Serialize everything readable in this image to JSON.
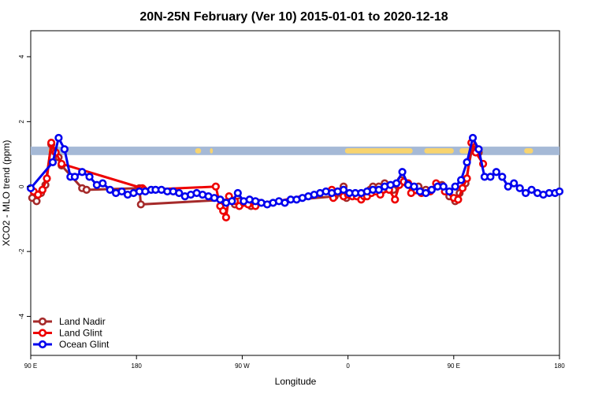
{
  "chart_data": {
    "type": "line",
    "title": "20N-25N February (Ver 10)   2015-01-01 to 2020-12-18",
    "xlabel": "Longitude",
    "ylabel": "XCO2 - MLO trend (ppm)",
    "xlim": [
      -90,
      270
    ],
    "ylim": [
      -5.2,
      4.8
    ],
    "x_ticks": [
      {
        "value": -90,
        "label": "90 E"
      },
      {
        "value": -18,
        "label": "180"
      },
      {
        "value": 54,
        "label": "90 W"
      },
      {
        "value": 126,
        "label": "0"
      },
      {
        "value": 198,
        "label": "90 E"
      },
      {
        "value": 270,
        "label": "180"
      }
    ],
    "y_ticks": [
      -4,
      -2,
      0,
      2,
      4
    ],
    "grid": false,
    "legend_position": "bottom-left",
    "land_band": {
      "y_range": [
        0.97,
        1.23
      ],
      "ocean_color": "#a5b9d6",
      "land_color": "#f8d46f"
    },
    "series": [
      {
        "name": "Land Nadir",
        "color": "#a52a2a",
        "points": [
          [
            -89,
            -0.35
          ],
          [
            -86,
            -0.45
          ],
          [
            -83,
            -0.2
          ],
          [
            -80,
            0.05
          ],
          [
            -76,
            1.3
          ],
          [
            -74,
            1.1
          ],
          [
            -71,
            0.9
          ],
          [
            -69,
            0.65
          ],
          [
            -55,
            -0.05
          ],
          [
            -52,
            -0.1
          ],
          [
            -16,
            -0.05
          ],
          [
            -15,
            -0.55
          ],
          [
            46,
            -0.4
          ],
          [
            49,
            -0.55
          ],
          [
            52,
            -0.45
          ],
          [
            60,
            -0.6
          ],
          [
            65,
            -0.5
          ],
          [
            117,
            -0.3
          ],
          [
            121,
            -0.2
          ],
          [
            123,
            0.0
          ],
          [
            125,
            -0.35
          ],
          [
            133,
            -0.3
          ],
          [
            141,
            -0.1
          ],
          [
            143,
            0.0
          ],
          [
            147,
            0.0
          ],
          [
            151,
            0.1
          ],
          [
            157,
            -0.1
          ],
          [
            162,
            0.2
          ],
          [
            166,
            0.1
          ],
          [
            174,
            0.0
          ],
          [
            179,
            -0.1
          ],
          [
            190,
            0.05
          ],
          [
            195,
            -0.3
          ],
          [
            199,
            -0.45
          ],
          [
            202,
            -0.2
          ],
          [
            206,
            0.1
          ],
          [
            211,
            1.3
          ],
          [
            215,
            1.05
          ]
        ]
      },
      {
        "name": "Land Glint",
        "color": "#ee0000",
        "points": [
          [
            -88,
            -0.15
          ],
          [
            -85,
            -0.25
          ],
          [
            -82,
            -0.1
          ],
          [
            -79,
            0.25
          ],
          [
            -76,
            1.35
          ],
          [
            -73,
            1.05
          ],
          [
            -69,
            0.7
          ],
          [
            -14,
            -0.05
          ],
          [
            -13,
            -0.1
          ],
          [
            36,
            0.0
          ],
          [
            39,
            -0.6
          ],
          [
            41,
            -0.75
          ],
          [
            43,
            -0.95
          ],
          [
            45,
            -0.3
          ],
          [
            49,
            -0.45
          ],
          [
            52,
            -0.6
          ],
          [
            55,
            -0.5
          ],
          [
            58,
            -0.55
          ],
          [
            63,
            -0.6
          ],
          [
            115,
            -0.1
          ],
          [
            116,
            -0.35
          ],
          [
            119,
            -0.15
          ],
          [
            123,
            -0.3
          ],
          [
            126,
            -0.25
          ],
          [
            129,
            -0.3
          ],
          [
            132,
            -0.3
          ],
          [
            135,
            -0.4
          ],
          [
            137,
            -0.3
          ],
          [
            139,
            -0.3
          ],
          [
            142,
            -0.2
          ],
          [
            145,
            -0.15
          ],
          [
            148,
            -0.25
          ],
          [
            154,
            -0.1
          ],
          [
            158,
            -0.4
          ],
          [
            161,
            0.05
          ],
          [
            164,
            0.15
          ],
          [
            167,
            0.1
          ],
          [
            169,
            -0.2
          ],
          [
            176,
            -0.2
          ],
          [
            182,
            -0.15
          ],
          [
            186,
            0.1
          ],
          [
            192,
            -0.15
          ],
          [
            198,
            -0.35
          ],
          [
            201,
            -0.4
          ],
          [
            204,
            -0.05
          ],
          [
            207,
            0.25
          ],
          [
            210,
            1.35
          ],
          [
            213,
            1.05
          ],
          [
            218,
            0.7
          ]
        ]
      },
      {
        "name": "Ocean Glint",
        "color": "#0000ee",
        "points": [
          [
            -90,
            -0.05
          ],
          [
            -75,
            0.75
          ],
          [
            -71,
            1.5
          ],
          [
            -67,
            1.15
          ],
          [
            -63,
            0.3
          ],
          [
            -60,
            0.3
          ],
          [
            -55,
            0.45
          ],
          [
            -50,
            0.3
          ],
          [
            -45,
            0.05
          ],
          [
            -41,
            0.1
          ],
          [
            -36,
            -0.1
          ],
          [
            -32,
            -0.2
          ],
          [
            -28,
            -0.15
          ],
          [
            -24,
            -0.25
          ],
          [
            -20,
            -0.2
          ],
          [
            -16,
            -0.15
          ],
          [
            -12,
            -0.15
          ],
          [
            -8,
            -0.1
          ],
          [
            -5,
            -0.1
          ],
          [
            -1,
            -0.1
          ],
          [
            3,
            -0.15
          ],
          [
            7,
            -0.15
          ],
          [
            11,
            -0.2
          ],
          [
            15,
            -0.3
          ],
          [
            19,
            -0.25
          ],
          [
            23,
            -0.2
          ],
          [
            27,
            -0.25
          ],
          [
            31,
            -0.3
          ],
          [
            35,
            -0.35
          ],
          [
            39,
            -0.4
          ],
          [
            43,
            -0.5
          ],
          [
            47,
            -0.45
          ],
          [
            51,
            -0.2
          ],
          [
            55,
            -0.45
          ],
          [
            59,
            -0.4
          ],
          [
            63,
            -0.45
          ],
          [
            67,
            -0.5
          ],
          [
            71,
            -0.55
          ],
          [
            75,
            -0.5
          ],
          [
            79,
            -0.45
          ],
          [
            83,
            -0.5
          ],
          [
            87,
            -0.4
          ],
          [
            91,
            -0.4
          ],
          [
            95,
            -0.35
          ],
          [
            99,
            -0.3
          ],
          [
            103,
            -0.25
          ],
          [
            107,
            -0.2
          ],
          [
            111,
            -0.15
          ],
          [
            115,
            -0.2
          ],
          [
            119,
            -0.15
          ],
          [
            123,
            -0.1
          ],
          [
            127,
            -0.2
          ],
          [
            131,
            -0.2
          ],
          [
            135,
            -0.2
          ],
          [
            139,
            -0.15
          ],
          [
            143,
            -0.1
          ],
          [
            147,
            -0.1
          ],
          [
            151,
            0.0
          ],
          [
            155,
            0.05
          ],
          [
            159,
            0.1
          ],
          [
            163,
            0.45
          ],
          [
            167,
            0.05
          ],
          [
            171,
            0.0
          ],
          [
            175,
            -0.15
          ],
          [
            179,
            -0.2
          ],
          [
            183,
            -0.1
          ],
          [
            187,
            0.0
          ],
          [
            191,
            0.0
          ],
          [
            195,
            -0.15
          ],
          [
            199,
            0.0
          ],
          [
            203,
            0.2
          ],
          [
            207,
            0.75
          ],
          [
            211,
            1.5
          ],
          [
            215,
            1.15
          ],
          [
            219,
            0.3
          ],
          [
            223,
            0.3
          ],
          [
            227,
            0.45
          ],
          [
            231,
            0.3
          ],
          [
            235,
            0.0
          ],
          [
            239,
            0.1
          ],
          [
            243,
            -0.05
          ],
          [
            247,
            -0.2
          ],
          [
            251,
            -0.1
          ],
          [
            255,
            -0.2
          ],
          [
            259,
            -0.25
          ],
          [
            263,
            -0.2
          ],
          [
            267,
            -0.2
          ],
          [
            270,
            -0.15
          ]
        ]
      }
    ]
  }
}
